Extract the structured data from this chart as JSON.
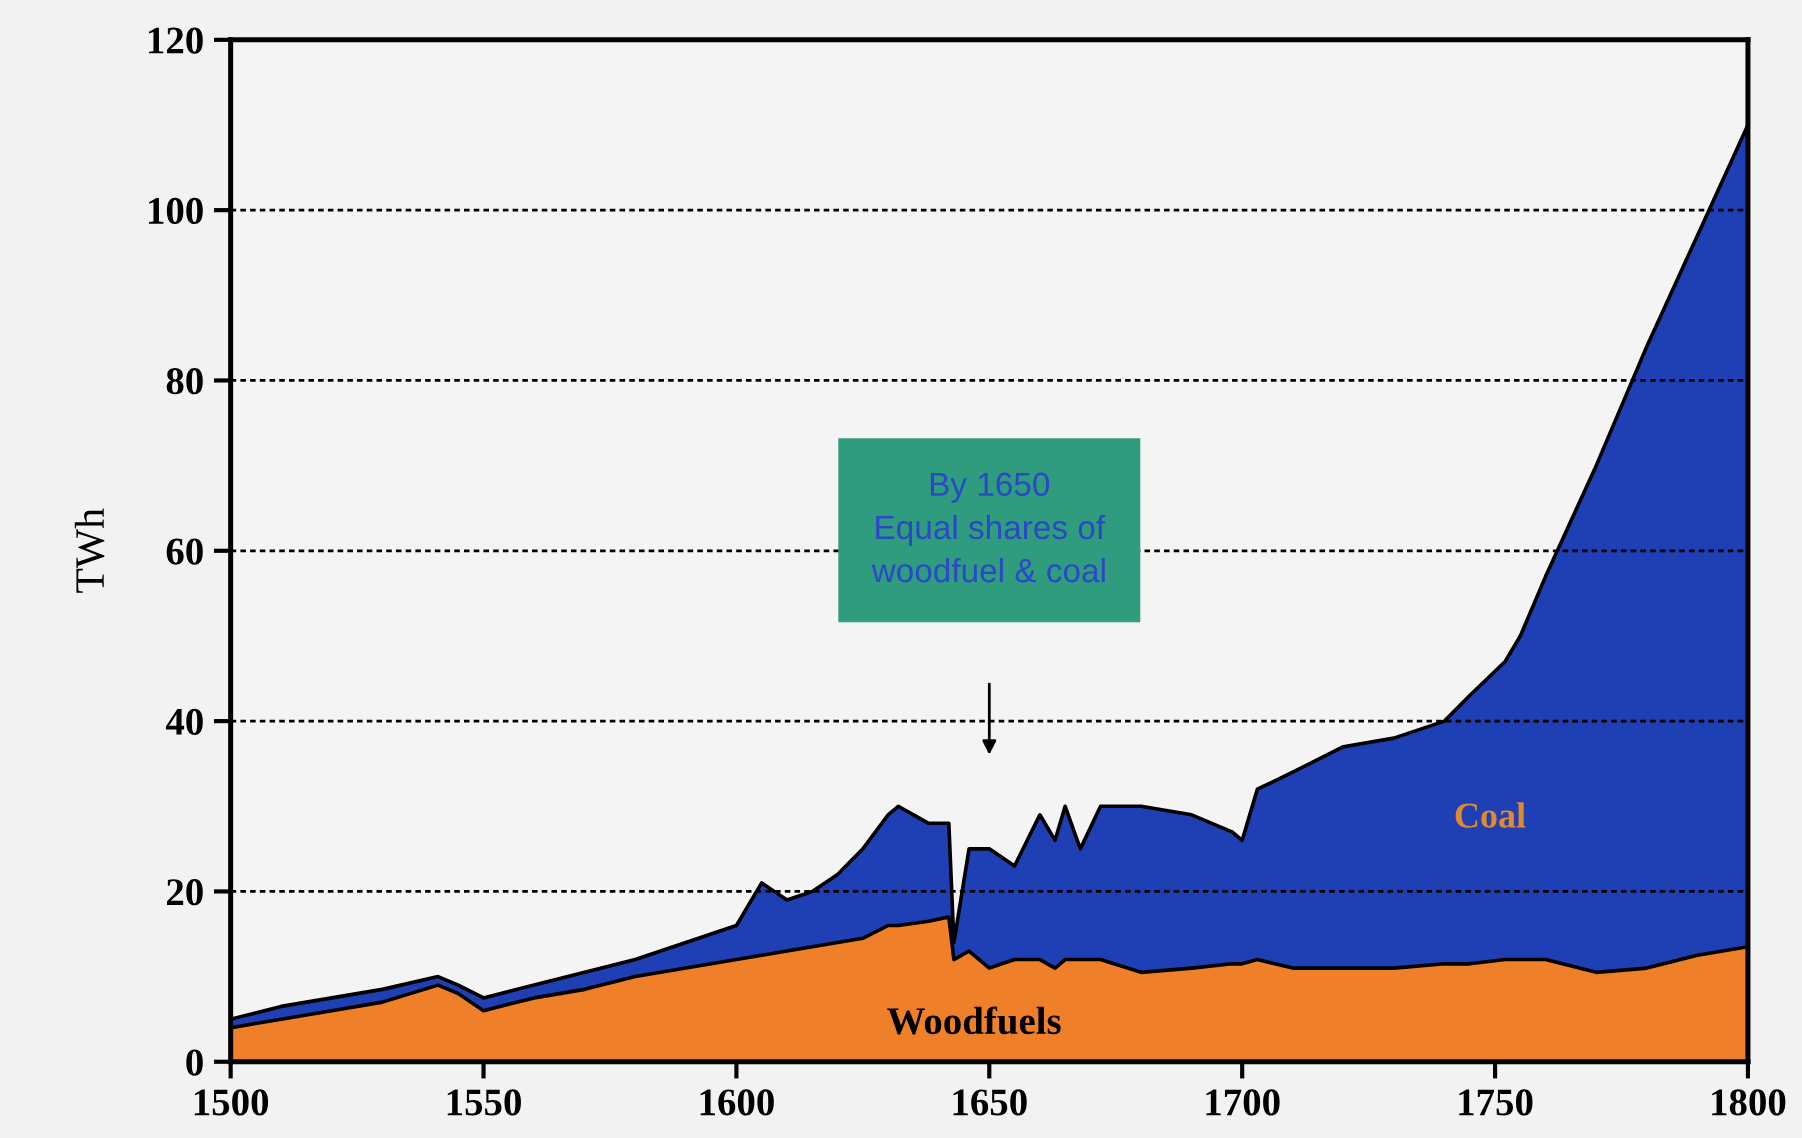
{
  "chart_data": {
    "type": "area",
    "stacked": true,
    "ylabel": "TWh",
    "x": [
      1500,
      1510,
      1520,
      1530,
      1541,
      1545,
      1550,
      1560,
      1570,
      1580,
      1590,
      1600,
      1605,
      1610,
      1615,
      1620,
      1625,
      1630,
      1632,
      1638,
      1642,
      1643,
      1646,
      1650,
      1655,
      1660,
      1663,
      1665,
      1668,
      1672,
      1680,
      1690,
      1698,
      1700,
      1703,
      1710,
      1720,
      1730,
      1740,
      1745,
      1752,
      1755,
      1760,
      1770,
      1780,
      1790,
      1800
    ],
    "series": [
      {
        "name": "Woodfuels",
        "color": "#f07f2a",
        "values": [
          4,
          5,
          6,
          7,
          9,
          8,
          6,
          7.5,
          8.5,
          10,
          11,
          12,
          12.5,
          13,
          13.5,
          14,
          14.5,
          16,
          16,
          16.5,
          17,
          12,
          13,
          11,
          12,
          12,
          11,
          12,
          12,
          12,
          10.5,
          11,
          11.5,
          11.5,
          12,
          11,
          11,
          11,
          11.5,
          11.5,
          12,
          12,
          12,
          10.5,
          11,
          12.5,
          13.5
        ]
      },
      {
        "name": "Coal",
        "color": "#1f3fb5",
        "values": [
          1,
          1.5,
          1.5,
          1.5,
          1,
          1,
          1.5,
          1.5,
          2,
          2,
          3,
          4,
          8.5,
          6,
          6.5,
          8,
          10.5,
          13,
          14,
          11.5,
          11,
          2,
          12,
          14,
          11,
          17,
          15,
          18,
          13,
          18,
          19.5,
          18,
          15.5,
          14.5,
          20,
          23,
          26,
          27,
          28.5,
          31.5,
          35,
          38,
          45,
          59.5,
          73,
          84.5,
          96.5
        ]
      }
    ],
    "xlim": [
      1500,
      1800
    ],
    "xticks": [
      1500,
      1550,
      1600,
      1650,
      1700,
      1750,
      1800
    ],
    "ylim": [
      0,
      120
    ],
    "yticks": [
      0,
      20,
      40,
      60,
      80,
      100,
      120
    ],
    "grid": "y",
    "legend": false,
    "annotations": [
      "By 1650\nEqual shares of\nwoodfuel & coal"
    ]
  }
}
